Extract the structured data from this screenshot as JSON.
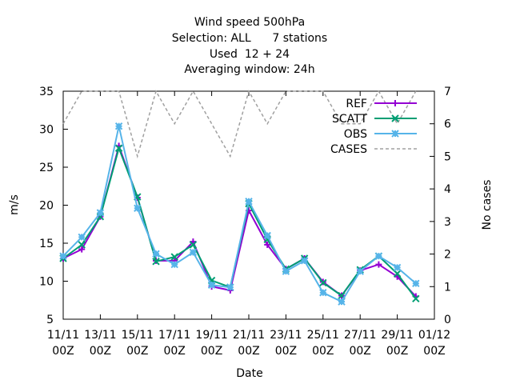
{
  "chart_data": {
    "type": "line",
    "title": [
      "Wind speed 500hPa",
      "Selection: ALL      7 stations",
      "Used  12 + 24",
      "Averaging window: 24h"
    ],
    "xlabel": "Date",
    "ylabel": "m/s",
    "y2label": "No cases",
    "ylim": [
      5,
      35
    ],
    "y2lim": [
      0,
      7
    ],
    "yticks": [
      5,
      10,
      15,
      20,
      25,
      30,
      35
    ],
    "y2ticks": [
      0,
      1,
      2,
      3,
      4,
      5,
      6,
      7
    ],
    "xlim": [
      "2021-11-11 00Z",
      "2021-12-01 00Z"
    ],
    "xticks": [
      {
        "line1": "11/11",
        "line2": "00Z"
      },
      {
        "line1": "13/11",
        "line2": "00Z"
      },
      {
        "line1": "15/11",
        "line2": "00Z"
      },
      {
        "line1": "17/11",
        "line2": "00Z"
      },
      {
        "line1": "19/11",
        "line2": "00Z"
      },
      {
        "line1": "21/11",
        "line2": "00Z"
      },
      {
        "line1": "23/11",
        "line2": "00Z"
      },
      {
        "line1": "25/11",
        "line2": "00Z"
      },
      {
        "line1": "27/11",
        "line2": "00Z"
      },
      {
        "line1": "29/11",
        "line2": "00Z"
      },
      {
        "line1": "01/12",
        "line2": "00Z"
      }
    ],
    "x": [
      "11/11 00Z",
      "12/11 00Z",
      "13/11 00Z",
      "14/11 00Z",
      "15/11 00Z",
      "16/11 00Z",
      "17/11 00Z",
      "18/11 00Z",
      "19/11 00Z",
      "20/11 00Z",
      "21/11 00Z",
      "22/11 00Z",
      "23/11 00Z",
      "24/11 00Z",
      "25/11 00Z",
      "26/11 00Z",
      "27/11 00Z",
      "28/11 00Z",
      "29/11 00Z",
      "30/11 00Z"
    ],
    "legend_position": "top-right",
    "grid": false,
    "series": [
      {
        "name": "REF",
        "color": "#9400d3",
        "axis": "y",
        "marker": "plus",
        "values": [
          13.0,
          14.2,
          18.5,
          27.8,
          21.0,
          12.7,
          12.7,
          15.2,
          9.3,
          8.8,
          19.3,
          14.8,
          11.6,
          13.0,
          9.9,
          8.1,
          11.4,
          12.2,
          10.6,
          8.0
        ]
      },
      {
        "name": "SCATT",
        "color": "#009e73",
        "axis": "y",
        "marker": "cross",
        "values": [
          13.0,
          14.8,
          18.5,
          27.5,
          21.1,
          12.6,
          13.2,
          14.8,
          10.1,
          9.2,
          20.2,
          15.5,
          11.6,
          13.0,
          9.8,
          8.1,
          11.5,
          13.3,
          11.0,
          7.7
        ]
      },
      {
        "name": "OBS",
        "color": "#56b4e9",
        "axis": "y",
        "marker": "star",
        "values": [
          13.3,
          15.8,
          19.0,
          30.4,
          19.6,
          13.6,
          12.2,
          13.8,
          9.5,
          9.2,
          20.5,
          16.0,
          11.3,
          12.7,
          8.5,
          7.3,
          11.3,
          13.3,
          11.8,
          9.7
        ]
      },
      {
        "name": "CASES",
        "color": "#a0a0a0",
        "axis": "y2",
        "dashed": true,
        "values": [
          6,
          7,
          7,
          7,
          5,
          7,
          6,
          7,
          6,
          5,
          7,
          6,
          7,
          7,
          7,
          6,
          6,
          7,
          6,
          7
        ]
      }
    ]
  }
}
